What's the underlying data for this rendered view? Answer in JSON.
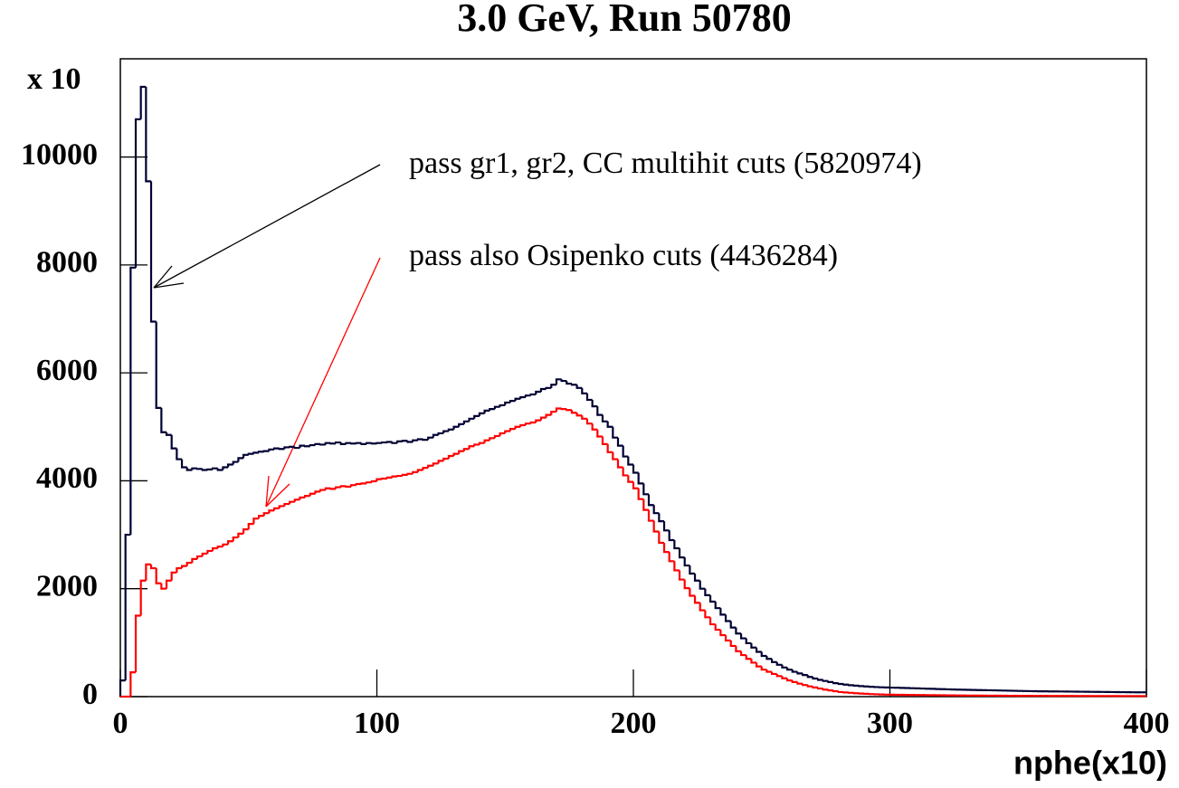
{
  "chart_data": {
    "type": "histogram",
    "title": "3.0 GeV, Run 50780",
    "x_label": "nphe(x10)",
    "y_multiplier_label": "x 10",
    "annotations": [
      "pass gr1, gr2, CC multihit cuts (5820974)",
      "pass also Osipenko cuts (4436284)"
    ],
    "xlim": [
      0,
      400
    ],
    "xticks": [
      0,
      100,
      200,
      300,
      400
    ],
    "ylim": [
      0,
      11820
    ],
    "yticks": [
      0,
      2000,
      4000,
      6000,
      8000,
      10000
    ],
    "bins": [
      0,
      2,
      4,
      6,
      8,
      10,
      12,
      14,
      16,
      18,
      20,
      22,
      24,
      26,
      28,
      30,
      32,
      34,
      36,
      38,
      40,
      42,
      44,
      46,
      48,
      50,
      52,
      54,
      56,
      58,
      60,
      62,
      64,
      66,
      68,
      70,
      72,
      74,
      76,
      78,
      80,
      82,
      84,
      86,
      88,
      90,
      92,
      94,
      96,
      98,
      100,
      102,
      104,
      106,
      108,
      110,
      112,
      114,
      116,
      118,
      120,
      122,
      124,
      126,
      128,
      130,
      132,
      134,
      136,
      138,
      140,
      142,
      144,
      146,
      148,
      150,
      152,
      154,
      156,
      158,
      160,
      162,
      164,
      166,
      168,
      170,
      172,
      174,
      176,
      178,
      180,
      182,
      184,
      186,
      188,
      190,
      192,
      194,
      196,
      198,
      200,
      202,
      204,
      206,
      208,
      210,
      212,
      214,
      216,
      218,
      220,
      222,
      224,
      226,
      228,
      230,
      232,
      234,
      236,
      238,
      240,
      242,
      244,
      246,
      248,
      250,
      252,
      254,
      256,
      258,
      260,
      262,
      264,
      266,
      268,
      270,
      272,
      274,
      276,
      278,
      280,
      282,
      284,
      286,
      288,
      290,
      292,
      294,
      296,
      298,
      300,
      302,
      304,
      306,
      308,
      310,
      312,
      314,
      316,
      318,
      320,
      322,
      324,
      326,
      328,
      330,
      332,
      334,
      336,
      338,
      340,
      342,
      344,
      346,
      348,
      350,
      352,
      354,
      356,
      358,
      360,
      362,
      364,
      366,
      368,
      370,
      372,
      374,
      376,
      378,
      380,
      382,
      384,
      386,
      388,
      390,
      392,
      394,
      396,
      398,
      400
    ],
    "series": [
      {
        "color": "#000033",
        "values": [
          300,
          3000,
          7950,
          10700,
          11300,
          9550,
          6950,
          5350,
          4900,
          4850,
          4600,
          4400,
          4250,
          4200,
          4230,
          4220,
          4200,
          4210,
          4230,
          4200,
          4250,
          4300,
          4350,
          4420,
          4480,
          4500,
          4520,
          4540,
          4550,
          4580,
          4600,
          4590,
          4620,
          4630,
          4610,
          4650,
          4640,
          4660,
          4680,
          4670,
          4700,
          4690,
          4710,
          4680,
          4700,
          4690,
          4700,
          4680,
          4700,
          4690,
          4700,
          4710,
          4720,
          4700,
          4730,
          4740,
          4720,
          4750,
          4770,
          4760,
          4800,
          4850,
          4880,
          4920,
          4950,
          5000,
          5050,
          5100,
          5150,
          5200,
          5250,
          5300,
          5330,
          5370,
          5400,
          5450,
          5480,
          5520,
          5550,
          5580,
          5600,
          5650,
          5700,
          5720,
          5780,
          5880,
          5850,
          5800,
          5780,
          5720,
          5620,
          5500,
          5380,
          5220,
          5100,
          5000,
          4800,
          4650,
          4450,
          4300,
          4150,
          3950,
          3750,
          3550,
          3400,
          3250,
          3080,
          2900,
          2750,
          2580,
          2430,
          2280,
          2150,
          2000,
          1880,
          1760,
          1640,
          1520,
          1400,
          1280,
          1170,
          1080,
          990,
          910,
          830,
          755,
          700,
          640,
          590,
          540,
          500,
          460,
          430,
          400,
          365,
          335,
          310,
          290,
          270,
          250,
          235,
          222,
          212,
          203,
          195,
          188,
          182,
          177,
          173,
          170,
          167,
          165,
          162,
          159,
          156,
          153,
          150,
          147,
          144,
          141,
          138,
          135,
          132,
          130,
          128,
          126,
          124,
          122,
          120,
          118,
          116,
          114,
          112,
          110,
          108,
          106,
          104,
          102,
          100,
          99,
          98,
          97,
          96,
          95,
          94,
          93,
          92,
          91,
          90,
          89,
          88,
          87,
          86,
          85,
          84,
          83,
          82,
          81,
          80,
          80
        ]
      },
      {
        "color": "#ff0000",
        "values": [
          0,
          0,
          450,
          1500,
          2150,
          2450,
          2380,
          2100,
          2000,
          2150,
          2300,
          2380,
          2420,
          2480,
          2550,
          2600,
          2650,
          2700,
          2750,
          2780,
          2820,
          2880,
          2950,
          3020,
          3100,
          3200,
          3300,
          3350,
          3400,
          3450,
          3490,
          3530,
          3570,
          3610,
          3650,
          3690,
          3720,
          3760,
          3800,
          3830,
          3860,
          3850,
          3880,
          3900,
          3890,
          3920,
          3940,
          3950,
          3970,
          3990,
          4030,
          4040,
          4060,
          4080,
          4090,
          4110,
          4130,
          4160,
          4200,
          4240,
          4280,
          4320,
          4370,
          4410,
          4460,
          4500,
          4550,
          4590,
          4640,
          4670,
          4700,
          4750,
          4790,
          4830,
          4880,
          4920,
          4960,
          5000,
          5030,
          5060,
          5080,
          5120,
          5170,
          5220,
          5280,
          5340,
          5330,
          5310,
          5260,
          5210,
          5150,
          5060,
          4950,
          4820,
          4680,
          4530,
          4400,
          4250,
          4100,
          3980,
          3860,
          3660,
          3460,
          3260,
          3060,
          2850,
          2680,
          2510,
          2340,
          2170,
          2010,
          1870,
          1740,
          1600,
          1470,
          1340,
          1240,
          1140,
          1040,
          940,
          840,
          770,
          700,
          630,
          560,
          500,
          460,
          420,
          380,
          340,
          300,
          270,
          240,
          215,
          190,
          170,
          150,
          130,
          115,
          100,
          85,
          78,
          70,
          63,
          57,
          52,
          47,
          43,
          40,
          37,
          35,
          34,
          33,
          32,
          31,
          30,
          29,
          28,
          27,
          26,
          25,
          24,
          23,
          22,
          21,
          20,
          20,
          19,
          19,
          18,
          18,
          17,
          17,
          16,
          16,
          15,
          15,
          15,
          14,
          14,
          14,
          13,
          13,
          13,
          13,
          12,
          12,
          12,
          12,
          11,
          11,
          11,
          11,
          11,
          10,
          10,
          10,
          10,
          10,
          10
        ]
      }
    ]
  }
}
